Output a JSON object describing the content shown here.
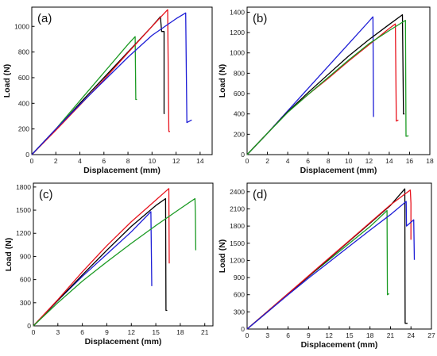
{
  "colors": {
    "black": "#000000",
    "red": "#e8141e",
    "green": "#1a9a22",
    "blue": "#1d1dd6"
  },
  "chart_data": [
    {
      "type": "line",
      "panel_label": "(a)",
      "xlabel": "Displacement (mm)",
      "ylabel": "Load (N)",
      "xlim": [
        0,
        15
      ],
      "ylim": [
        0,
        1150
      ],
      "xticks": [
        0,
        2,
        4,
        6,
        8,
        10,
        12,
        14
      ],
      "yticks": [
        0,
        200,
        400,
        600,
        800,
        1000
      ],
      "series": [
        {
          "color": "green",
          "x": [
            0,
            2,
            4,
            6,
            8,
            8.6,
            8.65,
            8.75
          ],
          "y": [
            0,
            200,
            420,
            640,
            860,
            920,
            430,
            430
          ]
        },
        {
          "color": "black",
          "x": [
            0,
            2,
            4,
            6,
            8,
            10,
            10.7,
            10.8,
            11.0,
            11.0,
            11.05
          ],
          "y": [
            0,
            195,
            400,
            600,
            800,
            1000,
            1075,
            960,
            960,
            320,
            320
          ]
        },
        {
          "color": "red",
          "x": [
            0,
            2,
            4,
            6,
            8,
            10,
            11.3,
            11.4,
            11.5
          ],
          "y": [
            0,
            190,
            385,
            585,
            795,
            1000,
            1130,
            180,
            180
          ]
        },
        {
          "color": "blue",
          "x": [
            0,
            2,
            4,
            6,
            8,
            10,
            12,
            12.8,
            12.9,
            13.3
          ],
          "y": [
            0,
            200,
            390,
            575,
            760,
            930,
            1060,
            1105,
            250,
            270
          ]
        }
      ]
    },
    {
      "type": "line",
      "panel_label": "(b)",
      "xlabel": "Displacement (mm)",
      "ylabel": "Load (N)",
      "xlim": [
        0,
        18
      ],
      "ylim": [
        0,
        1450
      ],
      "xticks": [
        0,
        2,
        4,
        6,
        8,
        10,
        12,
        14,
        16,
        18
      ],
      "yticks": [
        0,
        200,
        400,
        600,
        800,
        1000,
        1200,
        1400
      ],
      "series": [
        {
          "color": "blue",
          "x": [
            0,
            2,
            4,
            6,
            8,
            10,
            12,
            12.4,
            12.45
          ],
          "y": [
            0,
            210,
            430,
            650,
            870,
            1090,
            1310,
            1355,
            370
          ]
        },
        {
          "color": "red",
          "x": [
            0,
            2,
            4,
            6,
            8,
            10,
            12,
            14,
            14.6,
            14.7,
            14.9
          ],
          "y": [
            0,
            210,
            420,
            590,
            750,
            920,
            1080,
            1240,
            1285,
            330,
            340
          ]
        },
        {
          "color": "black",
          "x": [
            0,
            2,
            4,
            6,
            8,
            10,
            12,
            14,
            15.3,
            15.4,
            15.5
          ],
          "y": [
            0,
            210,
            420,
            610,
            790,
            970,
            1130,
            1280,
            1375,
            400,
            400
          ]
        },
        {
          "color": "green",
          "x": [
            0,
            2,
            4,
            6,
            8,
            10,
            12,
            14,
            15.6,
            15.65,
            15.9
          ],
          "y": [
            0,
            210,
            415,
            590,
            760,
            930,
            1090,
            1220,
            1320,
            180,
            185
          ]
        }
      ]
    },
    {
      "type": "line",
      "panel_label": "(c)",
      "xlabel": "Displacement (mm)",
      "ylabel": "Load (N)",
      "xlim": [
        0,
        22
      ],
      "ylim": [
        0,
        1850
      ],
      "xticks": [
        0,
        3,
        6,
        9,
        12,
        15,
        18,
        21
      ],
      "yticks": [
        0,
        300,
        600,
        900,
        1200,
        1500,
        1800
      ],
      "series": [
        {
          "color": "blue",
          "x": [
            0,
            3,
            6,
            9,
            12,
            14.4,
            14.5,
            14.55
          ],
          "y": [
            0,
            330,
            640,
            930,
            1220,
            1480,
            520,
            520
          ]
        },
        {
          "color": "black",
          "x": [
            0,
            3,
            6,
            9,
            12,
            15,
            16.2,
            16.25,
            16.4
          ],
          "y": [
            0,
            330,
            660,
            980,
            1290,
            1560,
            1650,
            200,
            200
          ]
        },
        {
          "color": "red",
          "x": [
            0,
            3,
            6,
            9,
            12,
            15,
            16.6,
            16.65
          ],
          "y": [
            0,
            340,
            700,
            1040,
            1350,
            1630,
            1780,
            810
          ]
        },
        {
          "color": "green",
          "x": [
            0,
            3,
            6,
            9,
            12,
            15,
            18,
            19.8,
            19.85,
            19.9
          ],
          "y": [
            0,
            300,
            580,
            830,
            1070,
            1300,
            1520,
            1650,
            1460,
            980
          ]
        }
      ]
    },
    {
      "type": "line",
      "panel_label": "(d)",
      "xlabel": "Displacement (mm)",
      "ylabel": "Load (N)",
      "xlim": [
        0,
        27
      ],
      "ylim": [
        0,
        2550
      ],
      "xticks": [
        0,
        3,
        6,
        9,
        12,
        15,
        18,
        21,
        24,
        27
      ],
      "yticks": [
        0,
        300,
        600,
        900,
        1200,
        1500,
        1800,
        2100,
        2400
      ],
      "series": [
        {
          "color": "green",
          "x": [
            0,
            3,
            6,
            9,
            12,
            15,
            18,
            20.5,
            20.55,
            20.8
          ],
          "y": [
            0,
            310,
            620,
            920,
            1210,
            1500,
            1790,
            2070,
            600,
            620
          ]
        },
        {
          "color": "black",
          "x": [
            0,
            3,
            6,
            9,
            12,
            15,
            18,
            21,
            23.1,
            23.15,
            23.5
          ],
          "y": [
            0,
            300,
            610,
            920,
            1230,
            1540,
            1850,
            2160,
            2450,
            100,
            100
          ]
        },
        {
          "color": "red",
          "x": [
            0,
            3,
            6,
            9,
            12,
            15,
            18,
            21,
            23.9,
            24.0,
            24.0
          ],
          "y": [
            0,
            310,
            620,
            930,
            1240,
            1550,
            1860,
            2170,
            2430,
            2200,
            1560
          ]
        },
        {
          "color": "blue",
          "x": [
            0,
            3,
            6,
            9,
            12,
            15,
            18,
            21,
            23.3,
            23.35,
            24.4,
            24.5
          ],
          "y": [
            0,
            300,
            600,
            890,
            1170,
            1450,
            1730,
            2000,
            2230,
            1800,
            1910,
            1210
          ]
        }
      ]
    }
  ]
}
